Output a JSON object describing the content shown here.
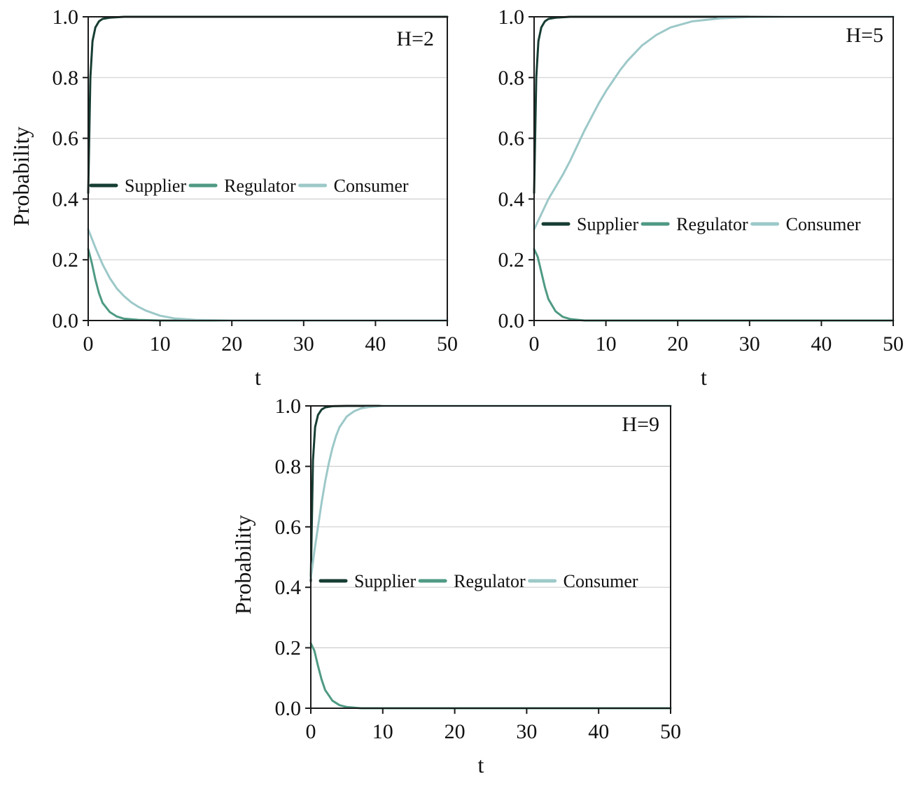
{
  "chart_data": [
    {
      "type": "line",
      "annotation": "H=2",
      "xlabel": "t",
      "ylabel": "Probability",
      "xlim": [
        0,
        50
      ],
      "ylim": [
        0,
        1.0
      ],
      "xticks": [
        "0",
        "10",
        "20",
        "30",
        "40",
        "50"
      ],
      "yticks": [
        "0.0",
        "0.2",
        "0.4",
        "0.6",
        "0.8",
        "1.0"
      ],
      "grid": "horizontal",
      "legend": "center-left",
      "series": [
        {
          "name": "Supplier",
          "color": "#173d33",
          "points": [
            [
              0,
              0.42
            ],
            [
              0.3,
              0.8
            ],
            [
              0.6,
              0.92
            ],
            [
              1,
              0.965
            ],
            [
              1.5,
              0.985
            ],
            [
              2,
              0.993
            ],
            [
              3,
              0.997
            ],
            [
              5,
              1.0
            ],
            [
              50,
              1.0
            ]
          ]
        },
        {
          "name": "Regulator",
          "color": "#4f9a84",
          "points": [
            [
              0,
              0.235
            ],
            [
              0.5,
              0.19
            ],
            [
              1,
              0.135
            ],
            [
              1.5,
              0.09
            ],
            [
              2,
              0.058
            ],
            [
              3,
              0.028
            ],
            [
              4,
              0.013
            ],
            [
              5,
              0.006
            ],
            [
              7,
              0.002
            ],
            [
              10,
              0.0
            ],
            [
              50,
              0.0
            ]
          ]
        },
        {
          "name": "Consumer",
          "color": "#9dc8c8",
          "points": [
            [
              0,
              0.3
            ],
            [
              1,
              0.24
            ],
            [
              2,
              0.185
            ],
            [
              3,
              0.14
            ],
            [
              4,
              0.105
            ],
            [
              5,
              0.08
            ],
            [
              6,
              0.06
            ],
            [
              7,
              0.045
            ],
            [
              8,
              0.033
            ],
            [
              10,
              0.016
            ],
            [
              12,
              0.007
            ],
            [
              15,
              0.002
            ],
            [
              20,
              0.0
            ],
            [
              50,
              0.0
            ]
          ]
        }
      ]
    },
    {
      "type": "line",
      "annotation": "H=5",
      "xlabel": "t",
      "ylabel": "",
      "xlim": [
        0,
        50
      ],
      "ylim": [
        0,
        1.0
      ],
      "xticks": [
        "0",
        "10",
        "20",
        "30",
        "40",
        "50"
      ],
      "yticks": [
        "0.0",
        "0.2",
        "0.4",
        "0.6",
        "0.8",
        "1.0"
      ],
      "grid": "horizontal",
      "legend": "center-right",
      "series": [
        {
          "name": "Supplier",
          "color": "#173d33",
          "points": [
            [
              0,
              0.42
            ],
            [
              0.3,
              0.8
            ],
            [
              0.6,
              0.92
            ],
            [
              1,
              0.965
            ],
            [
              1.5,
              0.985
            ],
            [
              2,
              0.993
            ],
            [
              3,
              0.997
            ],
            [
              5,
              1.0
            ],
            [
              50,
              1.0
            ]
          ]
        },
        {
          "name": "Regulator",
          "color": "#4f9a84",
          "points": [
            [
              0,
              0.235
            ],
            [
              0.5,
              0.21
            ],
            [
              1,
              0.16
            ],
            [
              1.5,
              0.11
            ],
            [
              2,
              0.07
            ],
            [
              3,
              0.03
            ],
            [
              4,
              0.012
            ],
            [
              5,
              0.005
            ],
            [
              7,
              0.0
            ],
            [
              50,
              0.0
            ]
          ]
        },
        {
          "name": "Consumer",
          "color": "#9dc8c8",
          "points": [
            [
              0,
              0.3
            ],
            [
              1,
              0.35
            ],
            [
              2,
              0.4
            ],
            [
              3,
              0.44
            ],
            [
              4,
              0.48
            ],
            [
              5,
              0.525
            ],
            [
              6,
              0.575
            ],
            [
              7,
              0.625
            ],
            [
              8,
              0.67
            ],
            [
              9,
              0.715
            ],
            [
              10,
              0.755
            ],
            [
              11,
              0.79
            ],
            [
              12,
              0.825
            ],
            [
              13,
              0.855
            ],
            [
              14,
              0.88
            ],
            [
              15,
              0.905
            ],
            [
              17,
              0.94
            ],
            [
              19,
              0.965
            ],
            [
              22,
              0.985
            ],
            [
              26,
              0.995
            ],
            [
              30,
              0.999
            ],
            [
              35,
              1.0
            ],
            [
              50,
              1.0
            ]
          ]
        }
      ]
    },
    {
      "type": "line",
      "annotation": "H=9",
      "xlabel": "t",
      "ylabel": "Probability",
      "xlim": [
        0,
        50
      ],
      "ylim": [
        0,
        1.0
      ],
      "xticks": [
        "0",
        "10",
        "20",
        "30",
        "40",
        "50"
      ],
      "yticks": [
        "0.0",
        "0.2",
        "0.4",
        "0.6",
        "0.8",
        "1.0"
      ],
      "grid": "horizontal",
      "legend": "center-right",
      "series": [
        {
          "name": "Supplier",
          "color": "#173d33",
          "points": [
            [
              0,
              0.42
            ],
            [
              0.3,
              0.82
            ],
            [
              0.6,
              0.93
            ],
            [
              1,
              0.97
            ],
            [
              1.5,
              0.988
            ],
            [
              2,
              0.995
            ],
            [
              3,
              0.999
            ],
            [
              5,
              1.0
            ],
            [
              50,
              1.0
            ]
          ]
        },
        {
          "name": "Regulator",
          "color": "#4f9a84",
          "points": [
            [
              0,
              0.215
            ],
            [
              0.5,
              0.19
            ],
            [
              1,
              0.14
            ],
            [
              1.5,
              0.095
            ],
            [
              2,
              0.06
            ],
            [
              3,
              0.025
            ],
            [
              4,
              0.01
            ],
            [
              5,
              0.004
            ],
            [
              7,
              0.0
            ],
            [
              50,
              0.0
            ]
          ]
        },
        {
          "name": "Consumer",
          "color": "#9dc8c8",
          "points": [
            [
              0,
              0.43
            ],
            [
              0.5,
              0.52
            ],
            [
              1,
              0.6
            ],
            [
              1.5,
              0.68
            ],
            [
              2,
              0.75
            ],
            [
              2.5,
              0.81
            ],
            [
              3,
              0.86
            ],
            [
              3.5,
              0.9
            ],
            [
              4,
              0.93
            ],
            [
              5,
              0.965
            ],
            [
              6,
              0.982
            ],
            [
              7,
              0.992
            ],
            [
              8,
              0.996
            ],
            [
              10,
              1.0
            ],
            [
              50,
              1.0
            ]
          ]
        }
      ]
    }
  ]
}
